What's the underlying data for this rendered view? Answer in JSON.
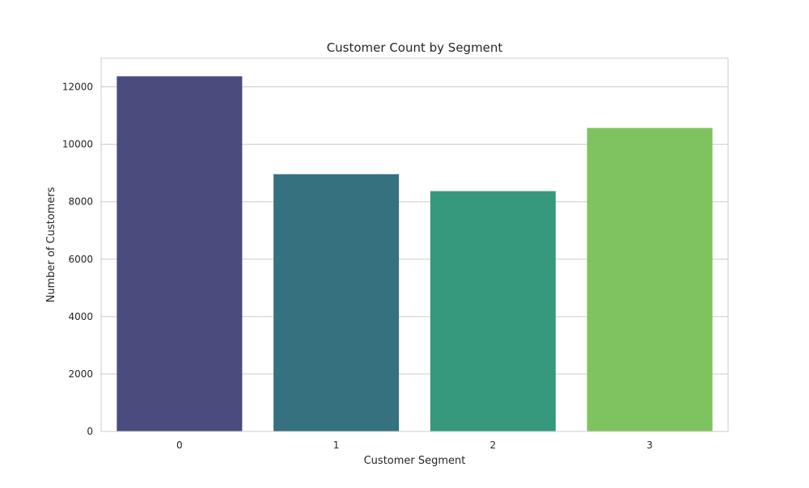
{
  "chart_data": {
    "type": "bar",
    "title": "Customer Count by Segment",
    "xlabel": "Customer Segment",
    "ylabel": "Number of Customers",
    "categories": [
      "0",
      "1",
      "2",
      "3"
    ],
    "values": [
      12370,
      8960,
      8370,
      10570
    ],
    "ylim": [
      0,
      13000
    ],
    "yticks": [
      0,
      2000,
      4000,
      6000,
      8000,
      10000,
      12000
    ],
    "grid": "horizontal",
    "colors": [
      "#4a4c7d",
      "#367180",
      "#36997d",
      "#7fc360"
    ]
  }
}
